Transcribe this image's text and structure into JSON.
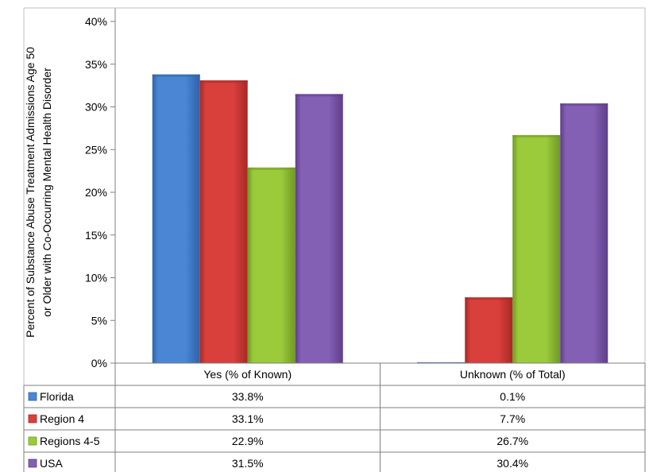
{
  "chart_data": {
    "type": "bar",
    "ylabel_lines": [
      "Percent of Substance Abuse Treatment Admissions Age 50",
      "or Older with Co-Occurring Mental Health Disorder"
    ],
    "categories": [
      "Yes (% of Known)",
      "Unknown (% of Total)"
    ],
    "ylim": [
      0,
      40
    ],
    "yticks": [
      "0%",
      "5%",
      "10%",
      "15%",
      "20%",
      "25%",
      "30%",
      "35%",
      "40%"
    ],
    "grid": false,
    "legend_placement": "data-table-left",
    "series": [
      {
        "name": "Florida",
        "values": [
          33.8,
          0.1
        ],
        "labels": [
          "33.8%",
          "0.1%"
        ],
        "color": "#4a86d4",
        "dark": "#2f62a8"
      },
      {
        "name": "Region 4",
        "values": [
          33.1,
          7.7
        ],
        "labels": [
          "33.1%",
          "7.7%"
        ],
        "color": "#d9403c",
        "dark": "#a82825"
      },
      {
        "name": "Regions 4-5",
        "values": [
          22.9,
          26.7
        ],
        "labels": [
          "22.9%",
          "26.7%"
        ],
        "color": "#9bcb3b",
        "dark": "#6f9a22"
      },
      {
        "name": "USA",
        "values": [
          31.5,
          30.4
        ],
        "labels": [
          "31.5%",
          "30.4%"
        ],
        "color": "#8460b4",
        "dark": "#5e3e8c"
      }
    ]
  }
}
